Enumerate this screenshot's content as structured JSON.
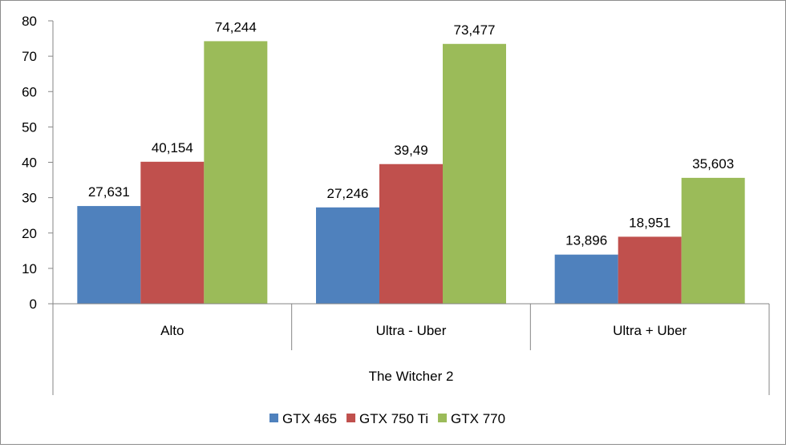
{
  "chart_data": {
    "type": "bar",
    "title": "",
    "xlabel": "",
    "ylabel": "",
    "group_label": "The Witcher 2",
    "categories": [
      "Alto",
      "Ultra - Uber",
      "Ultra + Uber"
    ],
    "series": [
      {
        "name": "GTX 465",
        "color": "#4f81bd",
        "values": [
          27.631,
          27.246,
          13.896
        ],
        "labels": [
          "27,631",
          "27,246",
          "13,896"
        ]
      },
      {
        "name": "GTX 750 Ti",
        "color": "#c0504d",
        "values": [
          40.154,
          39.49,
          18.951
        ],
        "labels": [
          "40,154",
          "39,49",
          "18,951"
        ]
      },
      {
        "name": "GTX 770",
        "color": "#9bbb59",
        "values": [
          74.244,
          73.477,
          35.603
        ],
        "labels": [
          "74,244",
          "73,477",
          "35,603"
        ]
      }
    ],
    "ylim": [
      0,
      80
    ],
    "yticks": [
      0,
      10,
      20,
      30,
      40,
      50,
      60,
      70,
      80
    ],
    "grid": false,
    "legend_position": "bottom"
  }
}
